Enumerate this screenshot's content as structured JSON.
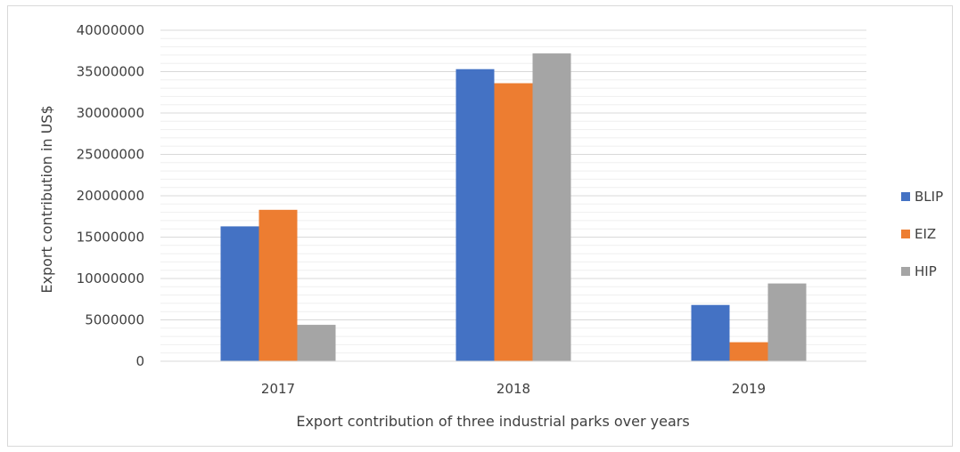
{
  "chart_data": {
    "type": "bar",
    "title": "",
    "xlabel": "Export contribution of three industrial parks over years",
    "ylabel": "Export contribution in US$",
    "categories": [
      "2017",
      "2018",
      "2019"
    ],
    "ylim": [
      0,
      40000000
    ],
    "yticks": [
      0,
      5000000,
      10000000,
      15000000,
      20000000,
      25000000,
      30000000,
      35000000,
      40000000
    ],
    "grid": true,
    "legend_position": "right",
    "series": [
      {
        "name": "BLIP",
        "color": "#4472C4",
        "values": [
          16300000,
          35300000,
          6800000
        ]
      },
      {
        "name": "EIZ",
        "color": "#ED7D31",
        "values": [
          18300000,
          33600000,
          2300000
        ]
      },
      {
        "name": "HIP",
        "color": "#A5A5A5",
        "values": [
          4400000,
          37200000,
          9400000
        ]
      }
    ]
  }
}
